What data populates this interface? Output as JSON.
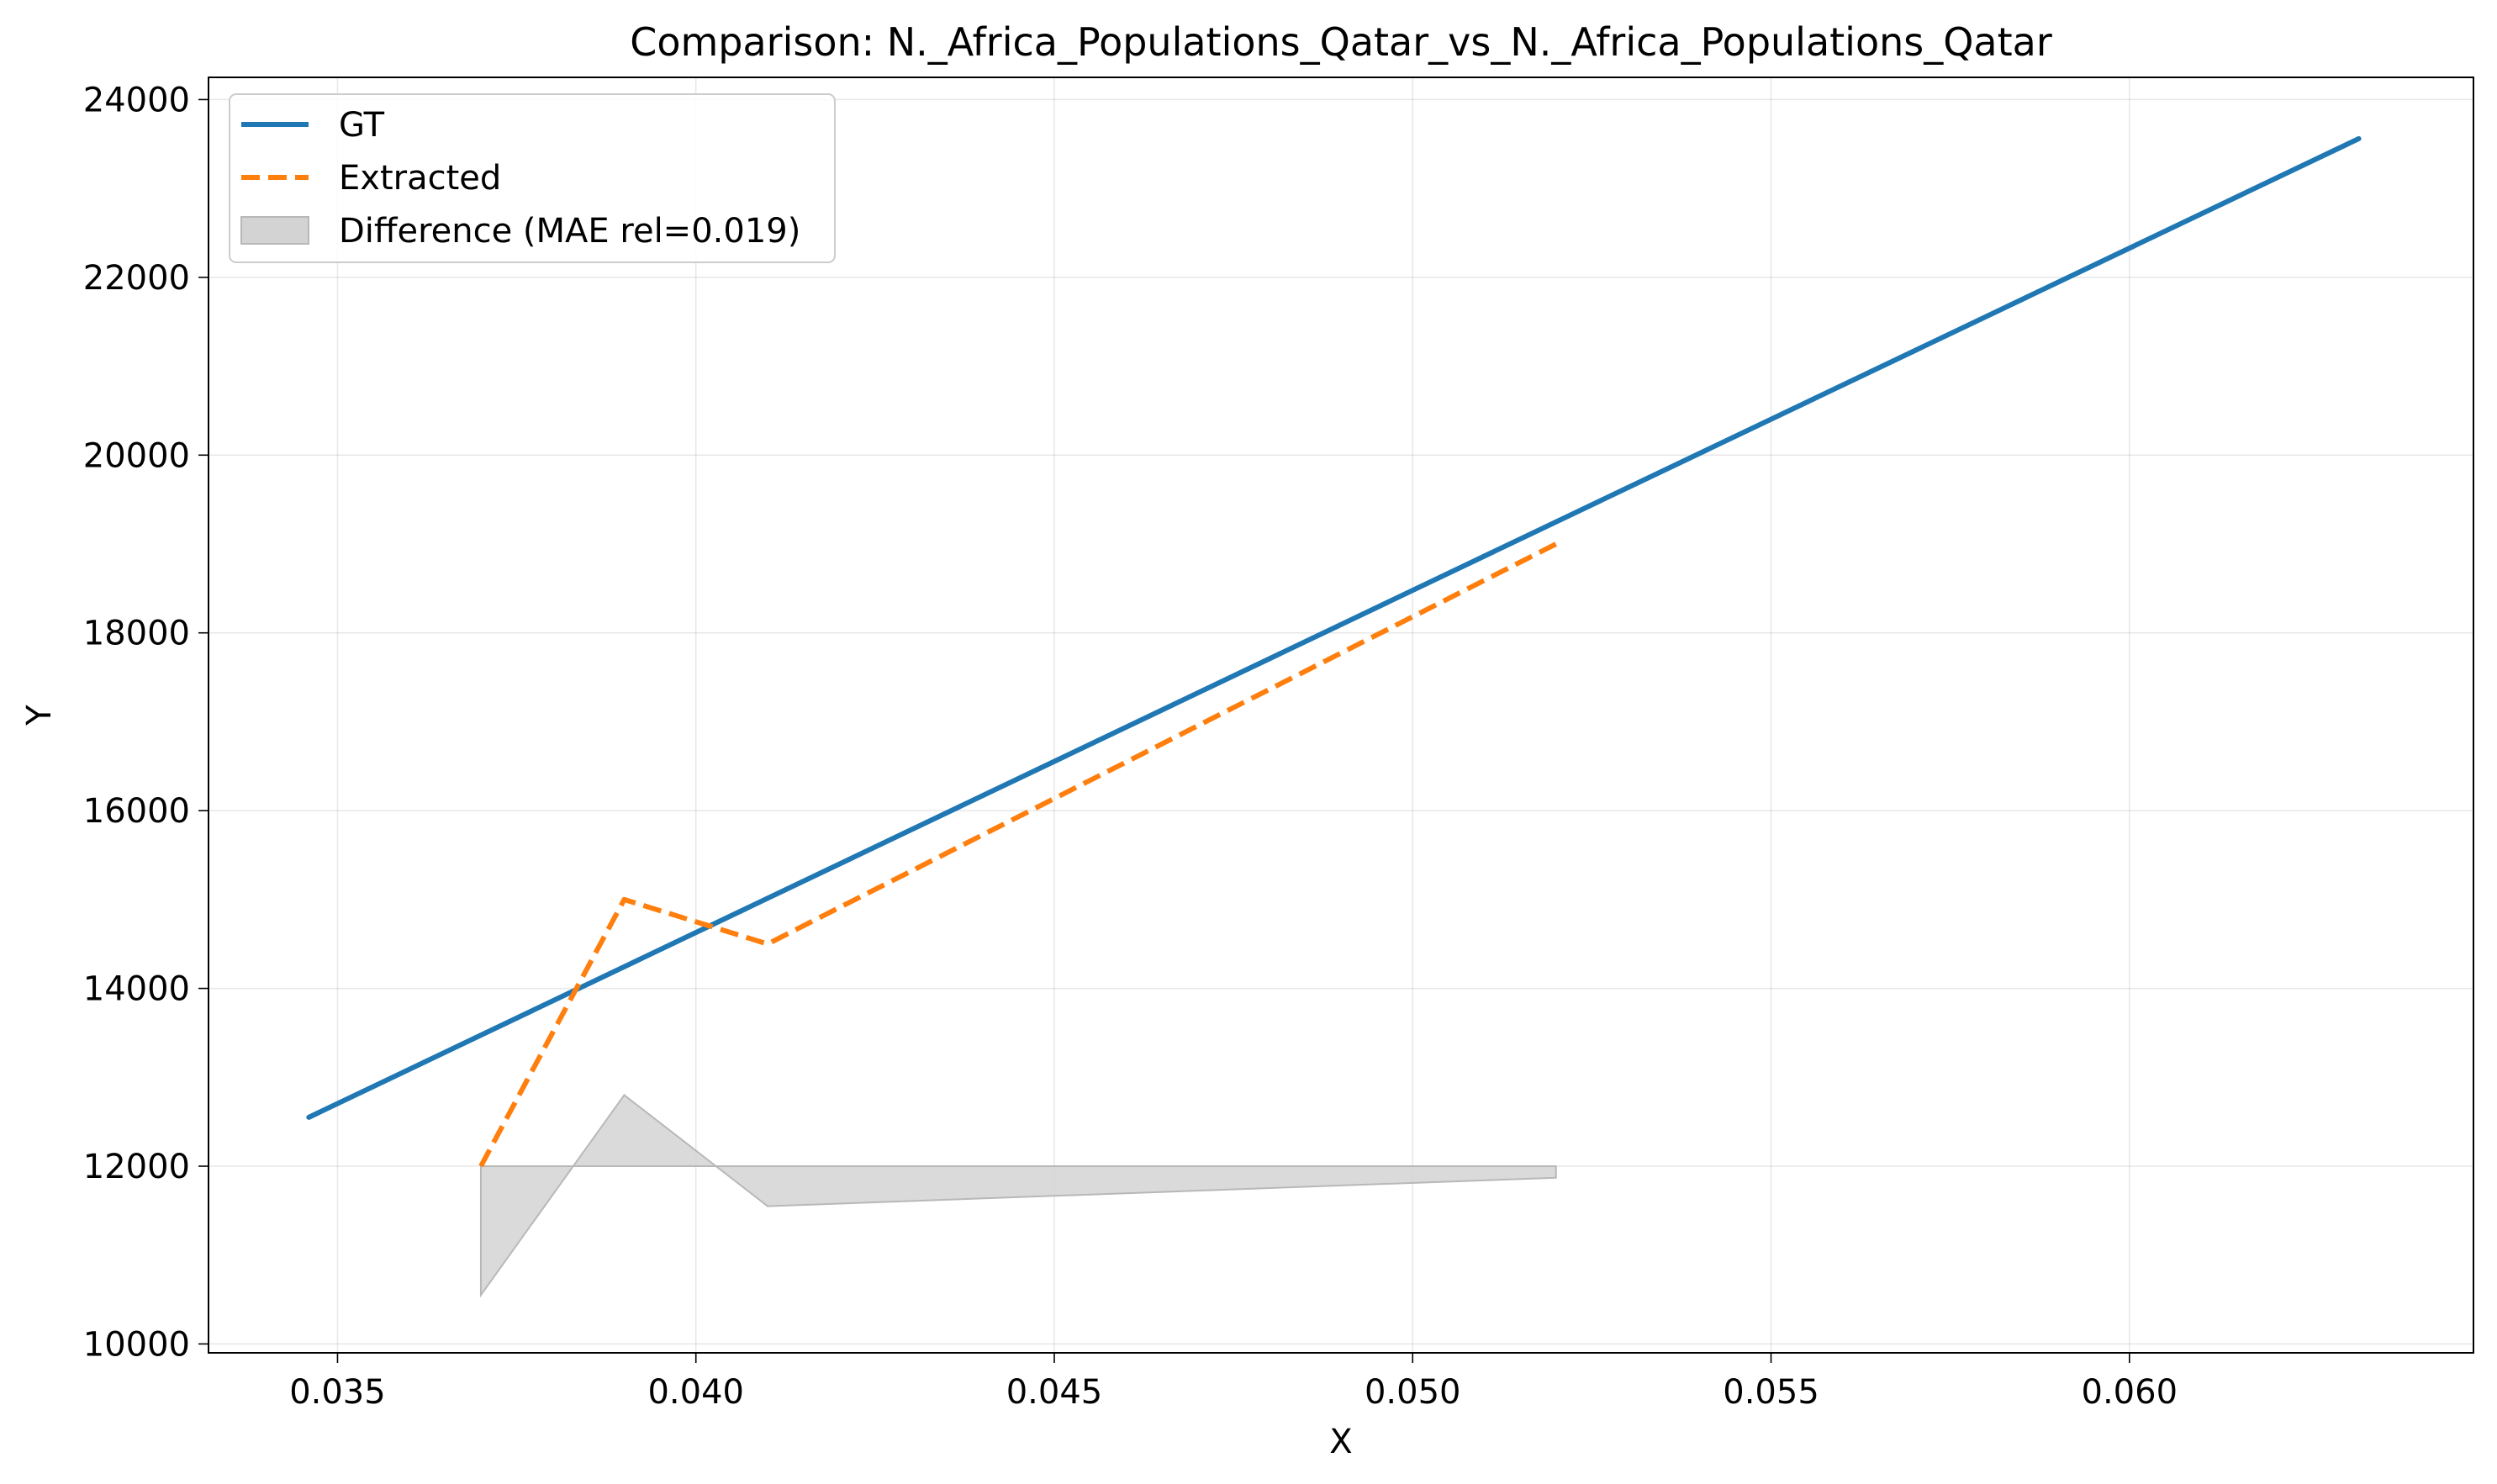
{
  "chart_data": {
    "type": "line",
    "title": "Comparison: N._Africa_Populations_Qatar_vs_N._Africa_Populations_Qatar",
    "xlabel": "X",
    "ylabel": "Y",
    "xlim": [
      0.0332,
      0.0648
    ],
    "ylim": [
      9900,
      24250
    ],
    "xticks": [
      0.035,
      0.04,
      0.045,
      0.05,
      0.055,
      0.06
    ],
    "xtick_labels": [
      "0.035",
      "0.040",
      "0.045",
      "0.050",
      "0.055",
      "0.060"
    ],
    "yticks": [
      10000,
      12000,
      14000,
      16000,
      18000,
      20000,
      22000,
      24000
    ],
    "ytick_labels": [
      "10000",
      "12000",
      "14000",
      "16000",
      "18000",
      "20000",
      "22000",
      "24000"
    ],
    "grid": true,
    "legend_position": "top-left",
    "series": [
      {
        "name": "GT",
        "style": "solid",
        "color": "#1f77b4",
        "x": [
          0.0346,
          0.0632
        ],
        "y": [
          12550,
          23560
        ]
      },
      {
        "name": "Extracted",
        "style": "dashed",
        "color": "#ff7f0e",
        "x": [
          0.037,
          0.039,
          0.041,
          0.052
        ],
        "y": [
          12000,
          15000,
          14500,
          19000
        ]
      }
    ],
    "difference_band": {
      "name": "Difference (MAE rel=0.019)",
      "color": "#d3d3d3",
      "x": [
        0.037,
        0.039,
        0.041,
        0.052
      ],
      "baseline": 12000,
      "y": [
        10550,
        12800,
        11550,
        11870
      ]
    }
  }
}
